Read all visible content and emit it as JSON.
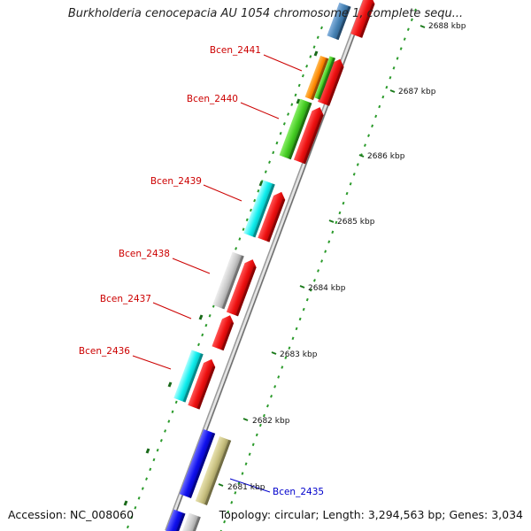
{
  "title": "Burkholderia cenocepacia AU 1054 chromosome 1, complete sequ...",
  "footer": {
    "accession": "Accession: NC_008060",
    "topology": "Topology: circular;",
    "length": "Length: 3,294,563 bp;",
    "genes": "Genes: 3,034"
  },
  "ruler": {
    "ticks": [
      {
        "label": "2688 kbp",
        "partial": true
      },
      {
        "label": "2687 kbp"
      },
      {
        "label": "2686 kbp"
      },
      {
        "label": "2685 kbp"
      },
      {
        "label": "2684 kbp"
      },
      {
        "label": "2683 kbp"
      },
      {
        "label": "2682 kbp"
      },
      {
        "label": "2681 kbp"
      }
    ]
  },
  "genes_labeled": [
    {
      "name": "Bcen_2441",
      "color": "#cc0000"
    },
    {
      "name": "Bcen_2440",
      "color": "#cc0000"
    },
    {
      "name": "Bcen_2439",
      "color": "#cc0000"
    },
    {
      "name": "Bcen_2438",
      "color": "#cc0000"
    },
    {
      "name": "Bcen_2437",
      "color": "#cc0000"
    },
    {
      "name": "Bcen_2436",
      "color": "#cc0000"
    },
    {
      "name": "Bcen_2435",
      "color": "#0000cc"
    }
  ],
  "colors": {
    "cds_red": "#ee1111",
    "cyan": "#11eeee",
    "green": "#44cc22",
    "orange": "#ff8800",
    "gray": "#c8c8c8",
    "blue": "#1111ee",
    "khaki": "#c8c080",
    "steel": "#4682b4",
    "backbone": "#888888",
    "ruler_dots": "#2a9a2a"
  }
}
